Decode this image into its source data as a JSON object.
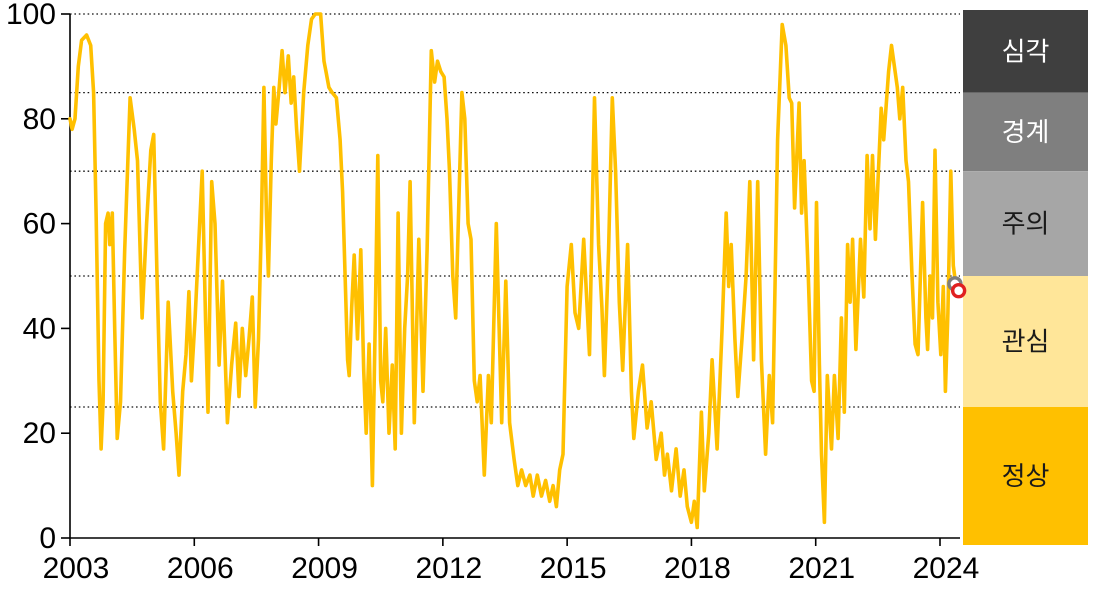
{
  "chart_data": {
    "type": "line",
    "title": "",
    "x_axis": {
      "tick_years": [
        2003,
        2006,
        2009,
        2012,
        2015,
        2018,
        2021,
        2024
      ],
      "range": [
        2003.0,
        2024.5
      ]
    },
    "y_axis": {
      "ticks": [
        0,
        20,
        40,
        60,
        80,
        100
      ],
      "range": [
        0,
        100
      ]
    },
    "gridline_values": [
      100,
      85,
      70,
      50,
      25
    ],
    "grid_on": true,
    "legend_position": "right-bands",
    "zones": [
      {
        "label": "심각",
        "from": 85,
        "to": 100,
        "color": "#3F3F3F",
        "text_color": "#FFFFFF"
      },
      {
        "label": "경계",
        "from": 70,
        "to": 85,
        "color": "#7F7F7F",
        "text_color": "#FFFFFF"
      },
      {
        "label": "주의",
        "from": 50,
        "to": 70,
        "color": "#A6A6A6",
        "text_color": "#1A1A1A"
      },
      {
        "label": "관심",
        "from": 25,
        "to": 50,
        "color": "#FFE699",
        "text_color": "#1A1A1A"
      },
      {
        "label": "정상",
        "from": 0,
        "to": 25,
        "color": "#FFC000",
        "text_color": "#1A1A1A"
      }
    ],
    "series": [
      {
        "color": "#FFC000",
        "points": [
          [
            2003.0,
            80
          ],
          [
            2003.05,
            78
          ],
          [
            2003.12,
            80
          ],
          [
            2003.2,
            90
          ],
          [
            2003.28,
            95
          ],
          [
            2003.4,
            96
          ],
          [
            2003.5,
            94
          ],
          [
            2003.57,
            85
          ],
          [
            2003.63,
            62
          ],
          [
            2003.7,
            30
          ],
          [
            2003.75,
            17
          ],
          [
            2003.8,
            26
          ],
          [
            2003.86,
            60
          ],
          [
            2003.92,
            62
          ],
          [
            2003.96,
            56
          ],
          [
            2004.02,
            62
          ],
          [
            2004.08,
            40
          ],
          [
            2004.14,
            19
          ],
          [
            2004.22,
            26
          ],
          [
            2004.32,
            55
          ],
          [
            2004.45,
            84
          ],
          [
            2004.55,
            78
          ],
          [
            2004.63,
            72
          ],
          [
            2004.74,
            42
          ],
          [
            2004.85,
            60
          ],
          [
            2004.95,
            74
          ],
          [
            2005.02,
            77
          ],
          [
            2005.1,
            50
          ],
          [
            2005.18,
            26
          ],
          [
            2005.26,
            17
          ],
          [
            2005.37,
            45
          ],
          [
            2005.48,
            28
          ],
          [
            2005.56,
            20
          ],
          [
            2005.63,
            12
          ],
          [
            2005.72,
            28
          ],
          [
            2005.8,
            35
          ],
          [
            2005.87,
            47
          ],
          [
            2005.93,
            30
          ],
          [
            2006.02,
            42
          ],
          [
            2006.1,
            55
          ],
          [
            2006.19,
            70
          ],
          [
            2006.27,
            42
          ],
          [
            2006.33,
            24
          ],
          [
            2006.42,
            68
          ],
          [
            2006.5,
            60
          ],
          [
            2006.6,
            33
          ],
          [
            2006.68,
            49
          ],
          [
            2006.8,
            22
          ],
          [
            2006.9,
            33
          ],
          [
            2007.0,
            41
          ],
          [
            2007.08,
            27
          ],
          [
            2007.16,
            40
          ],
          [
            2007.24,
            31
          ],
          [
            2007.32,
            38
          ],
          [
            2007.4,
            46
          ],
          [
            2007.47,
            25
          ],
          [
            2007.55,
            38
          ],
          [
            2007.62,
            60
          ],
          [
            2007.68,
            86
          ],
          [
            2007.74,
            62
          ],
          [
            2007.79,
            50
          ],
          [
            2007.86,
            72
          ],
          [
            2007.92,
            86
          ],
          [
            2007.97,
            79
          ],
          [
            2008.05,
            86
          ],
          [
            2008.12,
            93
          ],
          [
            2008.19,
            85
          ],
          [
            2008.27,
            92
          ],
          [
            2008.34,
            83
          ],
          [
            2008.4,
            88
          ],
          [
            2008.47,
            78
          ],
          [
            2008.54,
            70
          ],
          [
            2008.64,
            85
          ],
          [
            2008.74,
            94
          ],
          [
            2008.83,
            99
          ],
          [
            2008.92,
            100
          ],
          [
            2009.05,
            100
          ],
          [
            2009.13,
            91
          ],
          [
            2009.18,
            89
          ],
          [
            2009.25,
            86
          ],
          [
            2009.33,
            85
          ],
          [
            2009.43,
            84
          ],
          [
            2009.52,
            76
          ],
          [
            2009.58,
            66
          ],
          [
            2009.64,
            50
          ],
          [
            2009.7,
            34
          ],
          [
            2009.74,
            31
          ],
          [
            2009.8,
            44
          ],
          [
            2009.86,
            54
          ],
          [
            2009.94,
            38
          ],
          [
            2010.02,
            55
          ],
          [
            2010.09,
            32
          ],
          [
            2010.15,
            20
          ],
          [
            2010.22,
            37
          ],
          [
            2010.3,
            10
          ],
          [
            2010.37,
            42
          ],
          [
            2010.43,
            73
          ],
          [
            2010.5,
            30
          ],
          [
            2010.55,
            26
          ],
          [
            2010.62,
            40
          ],
          [
            2010.7,
            20
          ],
          [
            2010.78,
            33
          ],
          [
            2010.85,
            17
          ],
          [
            2010.92,
            62
          ],
          [
            2011.0,
            20
          ],
          [
            2011.08,
            40
          ],
          [
            2011.15,
            50
          ],
          [
            2011.21,
            68
          ],
          [
            2011.31,
            22
          ],
          [
            2011.42,
            57
          ],
          [
            2011.52,
            28
          ],
          [
            2011.62,
            55
          ],
          [
            2011.72,
            93
          ],
          [
            2011.8,
            87
          ],
          [
            2011.87,
            91
          ],
          [
            2011.95,
            89
          ],
          [
            2012.03,
            88
          ],
          [
            2012.1,
            80
          ],
          [
            2012.16,
            70
          ],
          [
            2012.24,
            50
          ],
          [
            2012.31,
            42
          ],
          [
            2012.39,
            65
          ],
          [
            2012.46,
            85
          ],
          [
            2012.53,
            80
          ],
          [
            2012.61,
            60
          ],
          [
            2012.68,
            57
          ],
          [
            2012.76,
            30
          ],
          [
            2012.83,
            26
          ],
          [
            2012.9,
            31
          ],
          [
            2013.0,
            12
          ],
          [
            2013.1,
            31
          ],
          [
            2013.17,
            22
          ],
          [
            2013.29,
            60
          ],
          [
            2013.42,
            22
          ],
          [
            2013.52,
            49
          ],
          [
            2013.61,
            22
          ],
          [
            2013.72,
            15
          ],
          [
            2013.81,
            10
          ],
          [
            2013.9,
            13
          ],
          [
            2014.0,
            10
          ],
          [
            2014.1,
            12
          ],
          [
            2014.18,
            8
          ],
          [
            2014.28,
            12
          ],
          [
            2014.38,
            8
          ],
          [
            2014.48,
            11
          ],
          [
            2014.58,
            7
          ],
          [
            2014.66,
            10
          ],
          [
            2014.74,
            6
          ],
          [
            2014.82,
            13
          ],
          [
            2014.9,
            16
          ],
          [
            2015.0,
            48
          ],
          [
            2015.1,
            56
          ],
          [
            2015.19,
            43
          ],
          [
            2015.28,
            40
          ],
          [
            2015.4,
            57
          ],
          [
            2015.54,
            35
          ],
          [
            2015.66,
            84
          ],
          [
            2015.76,
            56
          ],
          [
            2015.84,
            44
          ],
          [
            2015.9,
            31
          ],
          [
            2016.0,
            55
          ],
          [
            2016.09,
            84
          ],
          [
            2016.17,
            70
          ],
          [
            2016.26,
            45
          ],
          [
            2016.34,
            32
          ],
          [
            2016.46,
            56
          ],
          [
            2016.55,
            28
          ],
          [
            2016.61,
            19
          ],
          [
            2016.72,
            28
          ],
          [
            2016.82,
            33
          ],
          [
            2016.93,
            21
          ],
          [
            2017.03,
            26
          ],
          [
            2017.15,
            15
          ],
          [
            2017.27,
            20
          ],
          [
            2017.35,
            12
          ],
          [
            2017.42,
            16
          ],
          [
            2017.52,
            9
          ],
          [
            2017.63,
            17
          ],
          [
            2017.73,
            8
          ],
          [
            2017.82,
            13
          ],
          [
            2017.9,
            6
          ],
          [
            2018.0,
            3
          ],
          [
            2018.07,
            7
          ],
          [
            2018.14,
            2
          ],
          [
            2018.24,
            24
          ],
          [
            2018.31,
            9
          ],
          [
            2018.42,
            20
          ],
          [
            2018.5,
            34
          ],
          [
            2018.62,
            17
          ],
          [
            2018.74,
            40
          ],
          [
            2018.84,
            62
          ],
          [
            2018.9,
            48
          ],
          [
            2018.96,
            56
          ],
          [
            2019.05,
            38
          ],
          [
            2019.12,
            27
          ],
          [
            2019.22,
            38
          ],
          [
            2019.32,
            50
          ],
          [
            2019.41,
            68
          ],
          [
            2019.5,
            34
          ],
          [
            2019.6,
            68
          ],
          [
            2019.69,
            34
          ],
          [
            2019.79,
            16
          ],
          [
            2019.88,
            31
          ],
          [
            2019.96,
            22
          ],
          [
            2020.08,
            76
          ],
          [
            2020.19,
            98
          ],
          [
            2020.28,
            94
          ],
          [
            2020.36,
            84
          ],
          [
            2020.42,
            83
          ],
          [
            2020.49,
            63
          ],
          [
            2020.6,
            83
          ],
          [
            2020.66,
            62
          ],
          [
            2020.72,
            72
          ],
          [
            2020.82,
            50
          ],
          [
            2020.9,
            30
          ],
          [
            2020.96,
            28
          ],
          [
            2021.02,
            64
          ],
          [
            2021.09,
            33
          ],
          [
            2021.14,
            16
          ],
          [
            2021.21,
            3
          ],
          [
            2021.28,
            31
          ],
          [
            2021.38,
            17
          ],
          [
            2021.45,
            31
          ],
          [
            2021.54,
            19
          ],
          [
            2021.62,
            42
          ],
          [
            2021.69,
            24
          ],
          [
            2021.77,
            56
          ],
          [
            2021.83,
            45
          ],
          [
            2021.89,
            57
          ],
          [
            2021.97,
            36
          ],
          [
            2022.08,
            57
          ],
          [
            2022.16,
            46
          ],
          [
            2022.24,
            73
          ],
          [
            2022.31,
            59
          ],
          [
            2022.37,
            73
          ],
          [
            2022.44,
            57
          ],
          [
            2022.58,
            82
          ],
          [
            2022.64,
            76
          ],
          [
            2022.76,
            89
          ],
          [
            2022.83,
            94
          ],
          [
            2022.9,
            90
          ],
          [
            2022.97,
            86
          ],
          [
            2023.03,
            80
          ],
          [
            2023.1,
            86
          ],
          [
            2023.18,
            72
          ],
          [
            2023.24,
            68
          ],
          [
            2023.32,
            51
          ],
          [
            2023.4,
            37
          ],
          [
            2023.47,
            35
          ],
          [
            2023.58,
            64
          ],
          [
            2023.66,
            42
          ],
          [
            2023.7,
            36
          ],
          [
            2023.76,
            50
          ],
          [
            2023.82,
            42
          ],
          [
            2023.88,
            74
          ],
          [
            2023.95,
            45
          ],
          [
            2024.02,
            35
          ],
          [
            2024.08,
            48
          ],
          [
            2024.13,
            28
          ],
          [
            2024.19,
            43
          ],
          [
            2024.26,
            70
          ],
          [
            2024.32,
            52
          ],
          [
            2024.38,
            48.5
          ],
          [
            2024.44,
            47.2
          ]
        ]
      }
    ],
    "end_markers": [
      {
        "x": 2024.36,
        "value": 48.5,
        "color": "#7F7F7F"
      },
      {
        "x": 2024.45,
        "value": 47.2,
        "color": "#E02020"
      }
    ]
  }
}
